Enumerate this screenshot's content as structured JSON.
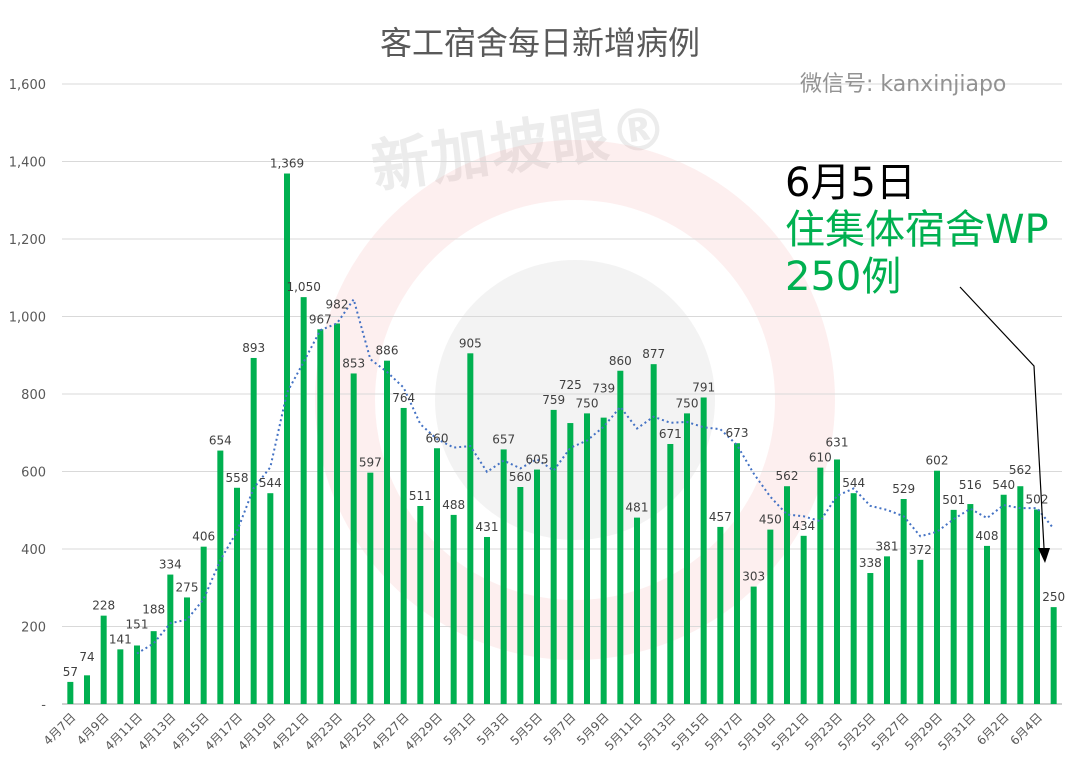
{
  "chart_data": {
    "type": "bar",
    "title": "客工宿舍每日新增病例",
    "categories": [
      "4月7日",
      "4月8日",
      "4月9日",
      "4月10日",
      "4月11日",
      "4月12日",
      "4月13日",
      "4月14日",
      "4月15日",
      "4月16日",
      "4月17日",
      "4月18日",
      "4月19日",
      "4月20日",
      "4月21日",
      "4月22日",
      "4月23日",
      "4月24日",
      "4月25日",
      "4月26日",
      "4月27日",
      "4月28日",
      "4月29日",
      "4月30日",
      "5月1日",
      "5月2日",
      "5月3日",
      "5月4日",
      "5月5日",
      "5月6日",
      "5月7日",
      "5月8日",
      "5月9日",
      "5月10日",
      "5月11日",
      "5月12日",
      "5月13日",
      "5月14日",
      "5月15日",
      "5月16日",
      "5月17日",
      "5月18日",
      "5月19日",
      "5月20日",
      "5月21日",
      "5月22日",
      "5月23日",
      "5月24日",
      "5月25日",
      "5月26日",
      "5月27日",
      "5月28日",
      "5月29日",
      "5月30日",
      "5月31日",
      "6月1日",
      "6月2日",
      "6月3日",
      "6月4日",
      "6月5日"
    ],
    "values": [
      57,
      74,
      228,
      141,
      151,
      188,
      334,
      275,
      406,
      654,
      558,
      893,
      544,
      1369,
      1050,
      967,
      982,
      853,
      597,
      886,
      764,
      511,
      660,
      488,
      905,
      431,
      657,
      560,
      605,
      759,
      725,
      750,
      739,
      860,
      481,
      877,
      671,
      750,
      791,
      457,
      673,
      303,
      450,
      562,
      434,
      610,
      631,
      544,
      338,
      381,
      529,
      372,
      602,
      501,
      516,
      408,
      540,
      562,
      502,
      250
    ],
    "ylim": [
      0,
      1600
    ],
    "yticks": [
      "-",
      "200",
      "400",
      "600",
      "800",
      "1,000",
      "1,200",
      "1,400",
      "1,600"
    ],
    "xlabel_every": 2,
    "trendline": {
      "type": "moving average",
      "period": 5,
      "color": "#4472c4",
      "style": "dotted"
    },
    "bar_color": "#00b050",
    "grid": true,
    "annotation": {
      "line1": "6月5日",
      "line2": "住集体宿舍WP",
      "line3": "250例",
      "points_to": "6月5日"
    }
  },
  "watermarks": {
    "brand": "新加坡眼®",
    "wechat": "微信号: kanxinjiapo"
  }
}
